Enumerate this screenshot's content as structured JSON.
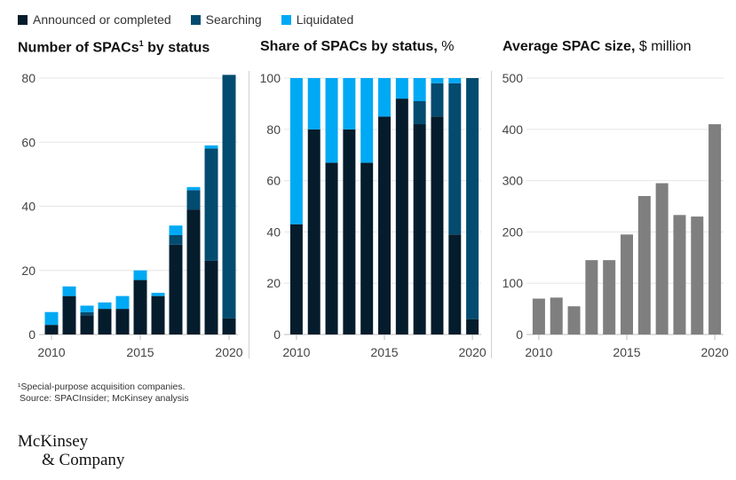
{
  "legend": [
    {
      "label": "Announced or completed",
      "color": "#051c2c"
    },
    {
      "label": "Searching",
      "color": "#034b6f"
    },
    {
      "label": "Liquidated",
      "color": "#00a9f4"
    }
  ],
  "chart_data": [
    {
      "type": "bar",
      "stacked": true,
      "title": "Number of SPACs",
      "title_sup": "1",
      "title_rest": " by status",
      "categories": [
        "2010",
        "2011",
        "2012",
        "2013",
        "2014",
        "2015",
        "2016",
        "2017",
        "2018",
        "2019",
        "2020"
      ],
      "series": [
        {
          "name": "Announced or completed",
          "values": [
            3,
            12,
            6,
            8,
            8,
            17,
            12,
            28,
            39,
            23,
            5
          ]
        },
        {
          "name": "Searching",
          "values": [
            0,
            0,
            1,
            0,
            0,
            0,
            0,
            3,
            6,
            35,
            76
          ]
        },
        {
          "name": "Liquidated",
          "values": [
            4,
            3,
            2,
            2,
            4,
            3,
            1,
            3,
            1,
            1,
            0
          ]
        }
      ],
      "ylim": [
        0,
        80
      ],
      "yticks": [
        "0",
        "20",
        "40",
        "60",
        "80"
      ],
      "xticks": [
        {
          "index": 0,
          "label": "2010"
        },
        {
          "index": 5,
          "label": "2015"
        },
        {
          "index": 10,
          "label": "2020"
        }
      ],
      "grid": true
    },
    {
      "type": "bar",
      "stacked": true,
      "title": "Share of SPACs by status,",
      "title_unit": " %",
      "categories": [
        "2010",
        "2011",
        "2012",
        "2013",
        "2014",
        "2015",
        "2016",
        "2017",
        "2018",
        "2019",
        "2020"
      ],
      "series": [
        {
          "name": "Announced or completed",
          "values": [
            43,
            80,
            67,
            80,
            67,
            85,
            92,
            82,
            85,
            39,
            6
          ]
        },
        {
          "name": "Searching",
          "values": [
            0,
            0,
            0,
            0,
            0,
            0,
            0,
            9,
            13,
            59,
            94
          ]
        },
        {
          "name": "Liquidated",
          "values": [
            57,
            20,
            33,
            20,
            33,
            15,
            8,
            9,
            2,
            2,
            0
          ]
        }
      ],
      "ylim": [
        0,
        100
      ],
      "yticks": [
        "0",
        "20",
        "40",
        "60",
        "80",
        "100"
      ],
      "xticks": [
        {
          "index": 0,
          "label": "2010"
        },
        {
          "index": 5,
          "label": "2015"
        },
        {
          "index": 10,
          "label": "2020"
        }
      ],
      "grid": true
    },
    {
      "type": "bar",
      "title": "Average SPAC size,",
      "title_unit": " $ million",
      "color": "#7f7f7f",
      "categories": [
        "2010",
        "2011",
        "2012",
        "2013",
        "2014",
        "2015",
        "2016",
        "2017",
        "2018",
        "2019",
        "2020"
      ],
      "values": [
        70,
        72,
        55,
        145,
        145,
        195,
        270,
        295,
        233,
        230,
        410
      ],
      "ylim": [
        0,
        500
      ],
      "yticks": [
        "0",
        "100",
        "200",
        "300",
        "400",
        "500"
      ],
      "xticks": [
        {
          "index": 0,
          "label": "2010"
        },
        {
          "index": 5,
          "label": "2015"
        },
        {
          "index": 10,
          "label": "2020"
        }
      ],
      "grid": true
    }
  ],
  "footnote": "¹Special-purpose acquisition companies.",
  "source": "Source: SPACInsider; McKinsey analysis",
  "logo": {
    "line1": "McKinsey",
    "line2": "& Company"
  }
}
